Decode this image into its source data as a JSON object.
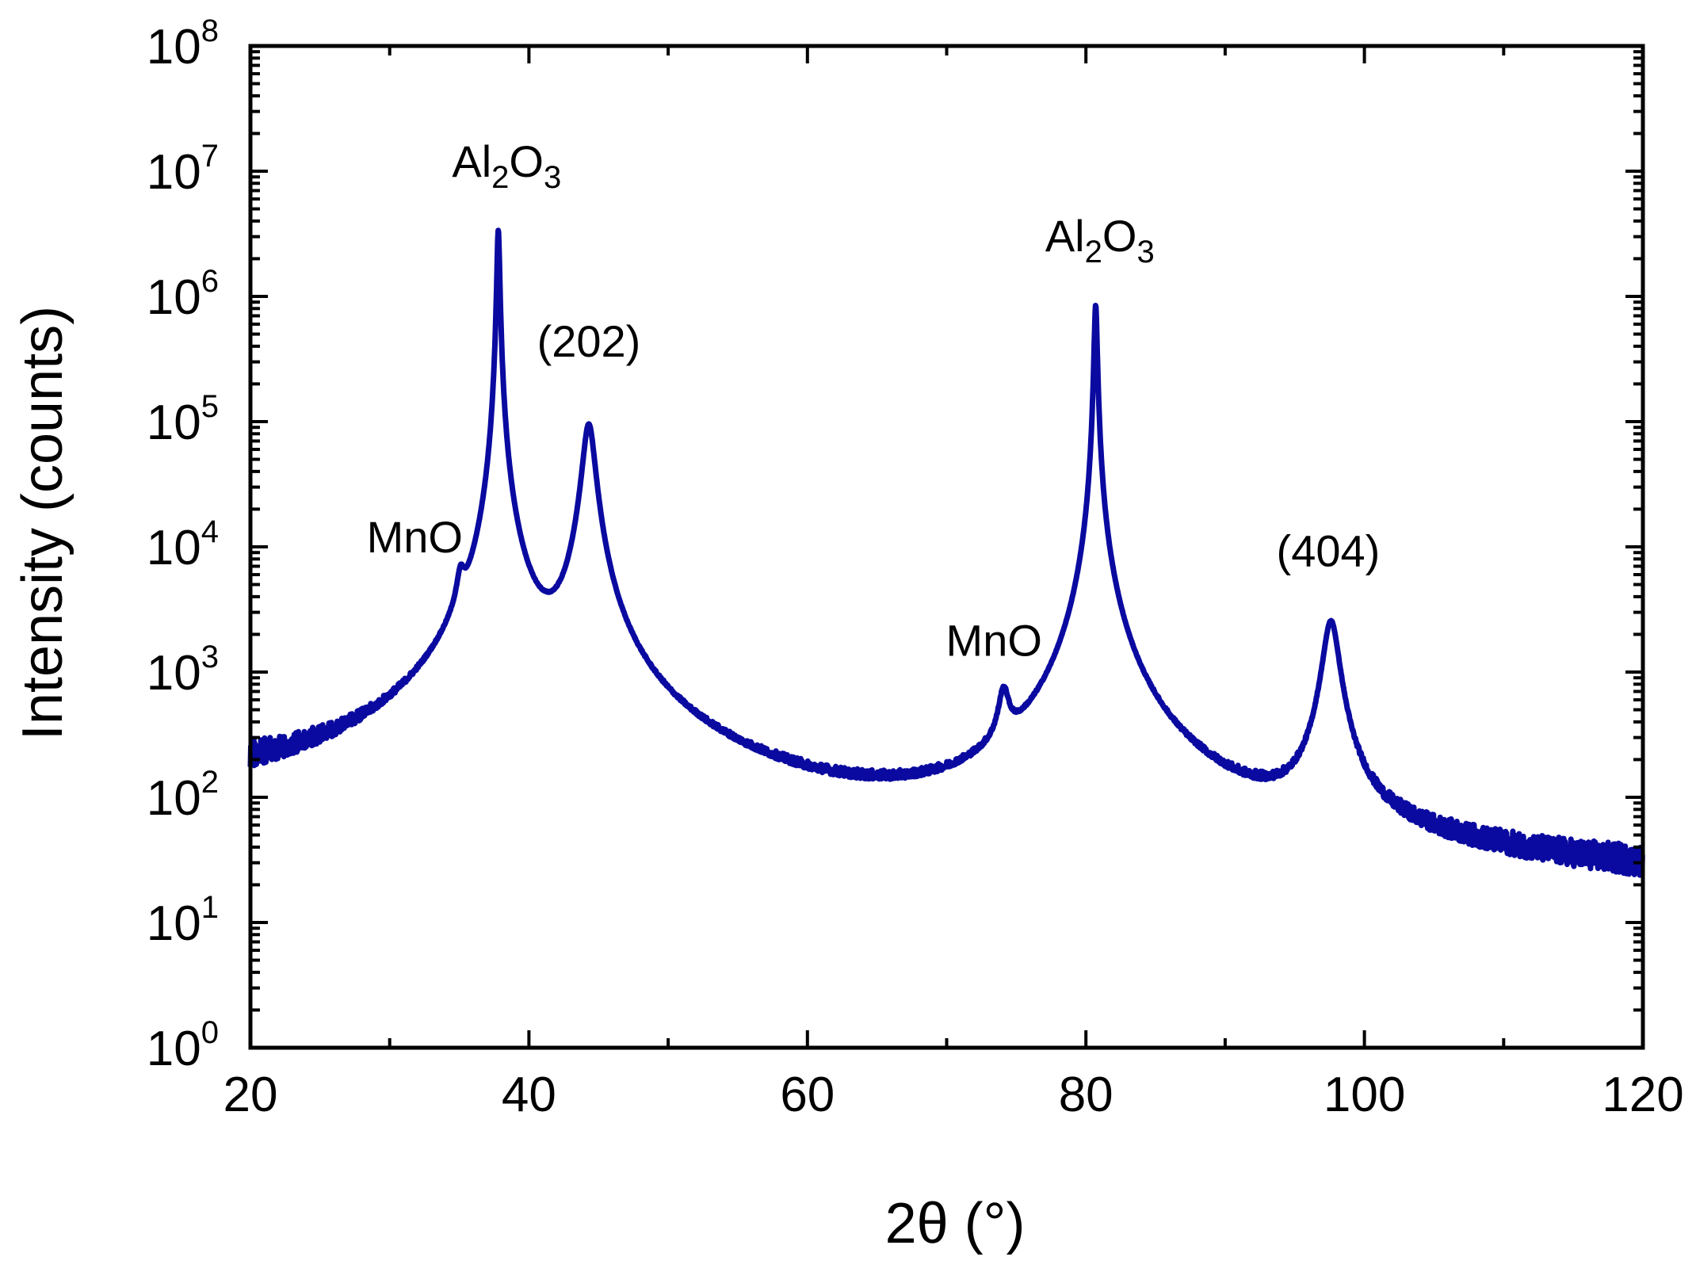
{
  "chart_data": {
    "type": "line",
    "title": "",
    "xlabel": "2θ (°)",
    "ylabel": "Intensity (counts)",
    "xlim": [
      20,
      120
    ],
    "ylim": [
      1,
      100000000
    ],
    "yscale": "log",
    "grid": false,
    "line_color": "#0a0aa0",
    "x_ticks": [
      20,
      40,
      60,
      80,
      100,
      120
    ],
    "x_tick_labels": [
      "20",
      "40",
      "60",
      "80",
      "100",
      "120"
    ],
    "y_ticks": [
      {
        "value": 1,
        "base": "10",
        "exp": "0"
      },
      {
        "value": 10,
        "base": "10",
        "exp": "1"
      },
      {
        "value": 100,
        "base": "10",
        "exp": "2"
      },
      {
        "value": 1000,
        "base": "10",
        "exp": "3"
      },
      {
        "value": 10000,
        "base": "10",
        "exp": "4"
      },
      {
        "value": 100000,
        "base": "10",
        "exp": "5"
      },
      {
        "value": 1000000,
        "base": "10",
        "exp": "6"
      },
      {
        "value": 10000000,
        "base": "10",
        "exp": "7"
      },
      {
        "value": 100000000,
        "base": "10",
        "exp": "8"
      }
    ],
    "background": {
      "points": [
        [
          20,
          95
        ],
        [
          30,
          65
        ],
        [
          36,
          50
        ],
        [
          42,
          80
        ],
        [
          50,
          30
        ],
        [
          60,
          22
        ],
        [
          70,
          18
        ],
        [
          80,
          20
        ],
        [
          90,
          18
        ],
        [
          100,
          17
        ],
        [
          110,
          15
        ],
        [
          120,
          14
        ]
      ],
      "noise_decades": 0.28
    },
    "peaks": [
      {
        "center": 35.1,
        "height": 2800,
        "width": 0.28
      },
      {
        "center": 37.8,
        "height": 3400000,
        "width": 0.09
      },
      {
        "center": 37.8,
        "height": 9000,
        "width": 0.55
      },
      {
        "center": 44.3,
        "height": 95000,
        "width": 0.42
      },
      {
        "center": 74.1,
        "height": 440,
        "width": 0.38
      },
      {
        "center": 80.7,
        "height": 850000,
        "width": 0.1
      },
      {
        "center": 80.7,
        "height": 4000,
        "width": 0.9
      },
      {
        "center": 97.6,
        "height": 2500,
        "width": 0.55
      }
    ],
    "annotations": [
      {
        "label": "MnO",
        "x": 31.8,
        "y": 9000
      },
      {
        "label": "Al",
        "sub": "2",
        "label2": "O",
        "sub2": "3",
        "x": 38.4,
        "y": 9000000
      },
      {
        "label": "(202)",
        "x": 44.3,
        "y": 330000
      },
      {
        "label": "MnO",
        "x": 73.4,
        "y": 1350
      },
      {
        "label": "Al",
        "sub": "2",
        "label2": "O",
        "sub2": "3",
        "x": 81.0,
        "y": 2300000
      },
      {
        "label": "(404)",
        "x": 97.4,
        "y": 7000
      }
    ]
  }
}
